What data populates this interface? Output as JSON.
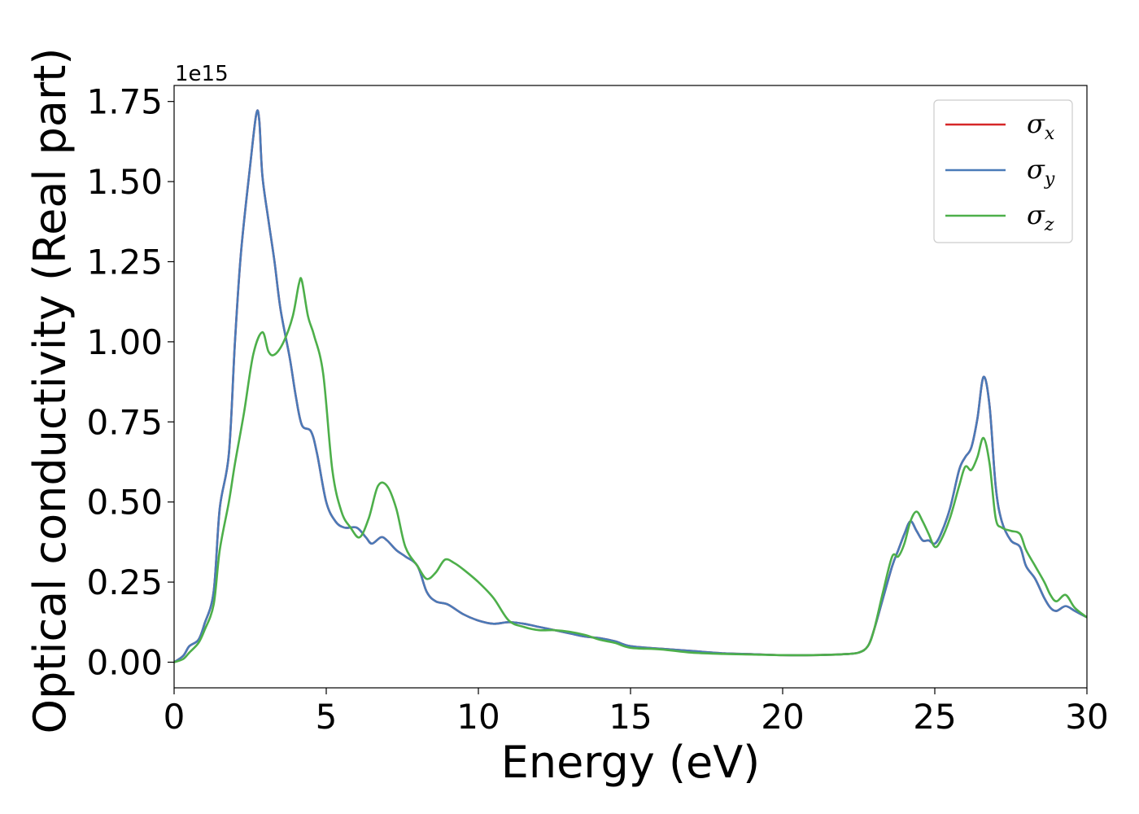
{
  "chart_data": {
    "type": "line",
    "xlabel": "Energy (eV)",
    "ylabel": "Optical conductivity (Real part)",
    "y_offset_text": "1e15",
    "xlim": [
      0,
      30
    ],
    "ylim": [
      -0.08,
      1.8
    ],
    "x_ticks": [
      0,
      5,
      10,
      15,
      20,
      25,
      30
    ],
    "x_tick_labels": [
      "0",
      "5",
      "10",
      "15",
      "20",
      "25",
      "30"
    ],
    "y_ticks": [
      0.0,
      0.25,
      0.5,
      0.75,
      1.0,
      1.25,
      1.5,
      1.75
    ],
    "y_tick_labels": [
      "0.00",
      "0.25",
      "0.50",
      "0.75",
      "1.00",
      "1.25",
      "1.50",
      "1.75"
    ],
    "grid": false,
    "legend_position": "top-right",
    "series": [
      {
        "name": "σ",
        "subscript": "x",
        "color": "#d62728",
        "x": [
          0,
          0.3,
          0.5,
          0.8,
          1.0,
          1.3,
          1.5,
          1.8,
          2.0,
          2.2,
          2.5,
          2.7,
          2.8,
          2.9,
          3.1,
          3.3,
          3.5,
          3.8,
          4.0,
          4.2,
          4.5,
          4.7,
          5.0,
          5.3,
          5.6,
          6.0,
          6.3,
          6.5,
          6.8,
          7.0,
          7.3,
          7.6,
          8.0,
          8.3,
          8.6,
          9.0,
          9.5,
          10.0,
          10.5,
          11.0,
          11.5,
          12.0,
          12.5,
          13.0,
          13.5,
          14.0,
          14.5,
          15.0,
          16.0,
          17.0,
          18.0,
          19.0,
          20.0,
          21.0,
          22.0,
          22.5,
          22.8,
          23.0,
          23.3,
          23.6,
          23.8,
          24.0,
          24.2,
          24.4,
          24.6,
          24.8,
          25.0,
          25.2,
          25.5,
          25.8,
          26.0,
          26.2,
          26.4,
          26.6,
          26.8,
          27.0,
          27.2,
          27.5,
          27.8,
          28.0,
          28.3,
          28.6,
          28.8,
          29.0,
          29.3,
          29.6,
          30.0
        ],
        "values": [
          0.0,
          0.02,
          0.05,
          0.07,
          0.12,
          0.22,
          0.48,
          0.65,
          1.0,
          1.28,
          1.55,
          1.71,
          1.69,
          1.52,
          1.38,
          1.25,
          1.1,
          0.95,
          0.83,
          0.74,
          0.72,
          0.65,
          0.5,
          0.44,
          0.42,
          0.42,
          0.39,
          0.37,
          0.39,
          0.38,
          0.35,
          0.33,
          0.3,
          0.22,
          0.19,
          0.18,
          0.15,
          0.13,
          0.12,
          0.125,
          0.12,
          0.11,
          0.1,
          0.09,
          0.08,
          0.075,
          0.065,
          0.05,
          0.042,
          0.035,
          0.028,
          0.025,
          0.022,
          0.022,
          0.025,
          0.03,
          0.05,
          0.1,
          0.2,
          0.3,
          0.35,
          0.4,
          0.44,
          0.41,
          0.38,
          0.38,
          0.37,
          0.4,
          0.48,
          0.6,
          0.64,
          0.67,
          0.76,
          0.89,
          0.8,
          0.55,
          0.44,
          0.38,
          0.36,
          0.3,
          0.26,
          0.2,
          0.17,
          0.16,
          0.175,
          0.16,
          0.14
        ]
      },
      {
        "name": "σ",
        "subscript": "y",
        "color": "#4a7ab8",
        "x": [
          0,
          0.3,
          0.5,
          0.8,
          1.0,
          1.3,
          1.5,
          1.8,
          2.0,
          2.2,
          2.5,
          2.7,
          2.8,
          2.9,
          3.1,
          3.3,
          3.5,
          3.8,
          4.0,
          4.2,
          4.5,
          4.7,
          5.0,
          5.3,
          5.6,
          6.0,
          6.3,
          6.5,
          6.8,
          7.0,
          7.3,
          7.6,
          8.0,
          8.3,
          8.6,
          9.0,
          9.5,
          10.0,
          10.5,
          11.0,
          11.5,
          12.0,
          12.5,
          13.0,
          13.5,
          14.0,
          14.5,
          15.0,
          16.0,
          17.0,
          18.0,
          19.0,
          20.0,
          21.0,
          22.0,
          22.5,
          22.8,
          23.0,
          23.3,
          23.6,
          23.8,
          24.0,
          24.2,
          24.4,
          24.6,
          24.8,
          25.0,
          25.2,
          25.5,
          25.8,
          26.0,
          26.2,
          26.4,
          26.6,
          26.8,
          27.0,
          27.2,
          27.5,
          27.8,
          28.0,
          28.3,
          28.6,
          28.8,
          29.0,
          29.3,
          29.6,
          30.0
        ],
        "values": [
          0.0,
          0.02,
          0.05,
          0.07,
          0.12,
          0.22,
          0.48,
          0.65,
          1.0,
          1.28,
          1.55,
          1.71,
          1.69,
          1.52,
          1.38,
          1.25,
          1.1,
          0.95,
          0.83,
          0.74,
          0.72,
          0.65,
          0.5,
          0.44,
          0.42,
          0.42,
          0.39,
          0.37,
          0.39,
          0.38,
          0.35,
          0.33,
          0.3,
          0.22,
          0.19,
          0.18,
          0.15,
          0.13,
          0.12,
          0.125,
          0.12,
          0.11,
          0.1,
          0.09,
          0.08,
          0.075,
          0.065,
          0.05,
          0.042,
          0.035,
          0.028,
          0.025,
          0.022,
          0.022,
          0.025,
          0.03,
          0.05,
          0.1,
          0.2,
          0.3,
          0.35,
          0.4,
          0.44,
          0.41,
          0.38,
          0.38,
          0.37,
          0.4,
          0.48,
          0.6,
          0.64,
          0.67,
          0.76,
          0.89,
          0.8,
          0.55,
          0.44,
          0.38,
          0.36,
          0.3,
          0.26,
          0.2,
          0.17,
          0.16,
          0.175,
          0.16,
          0.14
        ]
      },
      {
        "name": "σ",
        "subscript": "z",
        "color": "#4daf4a",
        "x": [
          0,
          0.3,
          0.5,
          0.8,
          1.0,
          1.3,
          1.5,
          1.8,
          2.0,
          2.3,
          2.6,
          2.9,
          3.1,
          3.3,
          3.6,
          3.9,
          4.1,
          4.2,
          4.4,
          4.6,
          4.9,
          5.2,
          5.5,
          5.8,
          6.1,
          6.4,
          6.7,
          7.0,
          7.3,
          7.6,
          8.0,
          8.3,
          8.6,
          8.9,
          9.2,
          9.5,
          10.0,
          10.5,
          11.0,
          11.5,
          12.0,
          12.5,
          13.0,
          13.5,
          14.0,
          14.5,
          15.0,
          16.0,
          17.0,
          18.0,
          19.0,
          20.0,
          21.0,
          22.0,
          22.5,
          22.8,
          23.0,
          23.3,
          23.6,
          23.8,
          24.0,
          24.2,
          24.4,
          24.6,
          24.8,
          25.0,
          25.2,
          25.5,
          25.8,
          26.0,
          26.2,
          26.4,
          26.6,
          26.8,
          27.0,
          27.2,
          27.5,
          27.8,
          28.0,
          28.3,
          28.6,
          28.8,
          29.0,
          29.3,
          29.6,
          30.0
        ],
        "values": [
          0.0,
          0.01,
          0.03,
          0.06,
          0.1,
          0.18,
          0.35,
          0.5,
          0.62,
          0.78,
          0.96,
          1.03,
          0.97,
          0.96,
          1.0,
          1.08,
          1.18,
          1.19,
          1.08,
          1.02,
          0.9,
          0.6,
          0.47,
          0.42,
          0.39,
          0.45,
          0.55,
          0.55,
          0.48,
          0.36,
          0.3,
          0.26,
          0.28,
          0.32,
          0.31,
          0.29,
          0.25,
          0.2,
          0.13,
          0.11,
          0.1,
          0.1,
          0.095,
          0.085,
          0.07,
          0.06,
          0.045,
          0.04,
          0.03,
          0.026,
          0.024,
          0.022,
          0.022,
          0.025,
          0.03,
          0.05,
          0.1,
          0.22,
          0.33,
          0.33,
          0.37,
          0.44,
          0.47,
          0.44,
          0.4,
          0.36,
          0.38,
          0.45,
          0.55,
          0.61,
          0.6,
          0.64,
          0.7,
          0.62,
          0.45,
          0.42,
          0.41,
          0.4,
          0.35,
          0.3,
          0.25,
          0.21,
          0.19,
          0.21,
          0.17,
          0.14
        ]
      }
    ]
  }
}
